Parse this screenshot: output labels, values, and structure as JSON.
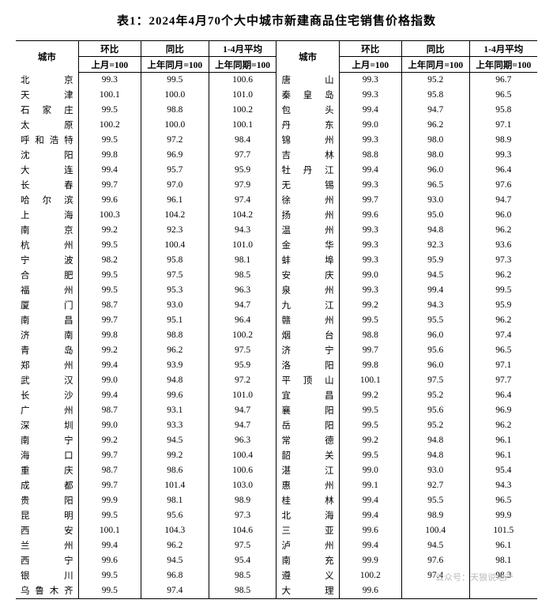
{
  "title": "表1：2024年4月70个大中城市新建商品住宅销售价格指数",
  "headers": {
    "city": "城市",
    "mom": "环比",
    "yoy": "同比",
    "avg": "1-4月平均",
    "mom_sub": "上月=100",
    "yoy_sub": "上年同月=100",
    "avg_sub": "上年同期=100"
  },
  "watermark": "公众号：天狼说地产",
  "left": [
    {
      "city": "北　　京",
      "mom": "99.3",
      "yoy": "99.5",
      "avg": "100.6"
    },
    {
      "city": "天　　津",
      "mom": "100.1",
      "yoy": "100.0",
      "avg": "101.0"
    },
    {
      "city": "石 家 庄",
      "mom": "99.5",
      "yoy": "98.8",
      "avg": "100.2"
    },
    {
      "city": "太　　原",
      "mom": "100.2",
      "yoy": "100.0",
      "avg": "100.1"
    },
    {
      "city": "呼和浩特",
      "mom": "99.5",
      "yoy": "97.2",
      "avg": "98.4"
    },
    {
      "city": "沈　　阳",
      "mom": "99.8",
      "yoy": "96.9",
      "avg": "97.7"
    },
    {
      "city": "大　　连",
      "mom": "99.4",
      "yoy": "95.7",
      "avg": "95.9"
    },
    {
      "city": "长　　春",
      "mom": "99.7",
      "yoy": "97.0",
      "avg": "97.9"
    },
    {
      "city": "哈 尔 滨",
      "mom": "99.6",
      "yoy": "96.1",
      "avg": "97.4"
    },
    {
      "city": "上　　海",
      "mom": "100.3",
      "yoy": "104.2",
      "avg": "104.2"
    },
    {
      "city": "南　　京",
      "mom": "99.2",
      "yoy": "92.3",
      "avg": "94.3"
    },
    {
      "city": "杭　　州",
      "mom": "99.5",
      "yoy": "100.4",
      "avg": "101.0"
    },
    {
      "city": "宁　　波",
      "mom": "98.2",
      "yoy": "95.8",
      "avg": "98.1"
    },
    {
      "city": "合　　肥",
      "mom": "99.5",
      "yoy": "97.5",
      "avg": "98.5"
    },
    {
      "city": "福　　州",
      "mom": "99.5",
      "yoy": "95.3",
      "avg": "96.3"
    },
    {
      "city": "厦　　门",
      "mom": "98.7",
      "yoy": "93.0",
      "avg": "94.7"
    },
    {
      "city": "南　　昌",
      "mom": "99.7",
      "yoy": "95.1",
      "avg": "96.4"
    },
    {
      "city": "济　　南",
      "mom": "99.8",
      "yoy": "98.8",
      "avg": "100.2"
    },
    {
      "city": "青　　岛",
      "mom": "99.2",
      "yoy": "96.2",
      "avg": "97.5"
    },
    {
      "city": "郑　　州",
      "mom": "99.4",
      "yoy": "93.9",
      "avg": "95.9"
    },
    {
      "city": "武　　汉",
      "mom": "99.0",
      "yoy": "94.8",
      "avg": "97.2"
    },
    {
      "city": "长　　沙",
      "mom": "99.4",
      "yoy": "99.6",
      "avg": "101.0"
    },
    {
      "city": "广　　州",
      "mom": "98.7",
      "yoy": "93.1",
      "avg": "94.7"
    },
    {
      "city": "深　　圳",
      "mom": "99.0",
      "yoy": "93.3",
      "avg": "94.7"
    },
    {
      "city": "南　　宁",
      "mom": "99.2",
      "yoy": "94.5",
      "avg": "96.3"
    },
    {
      "city": "海　　口",
      "mom": "99.7",
      "yoy": "99.2",
      "avg": "100.4"
    },
    {
      "city": "重　　庆",
      "mom": "98.7",
      "yoy": "98.6",
      "avg": "100.6"
    },
    {
      "city": "成　　都",
      "mom": "99.7",
      "yoy": "101.4",
      "avg": "103.0"
    },
    {
      "city": "贵　　阳",
      "mom": "99.9",
      "yoy": "98.1",
      "avg": "98.9"
    },
    {
      "city": "昆　　明",
      "mom": "99.5",
      "yoy": "95.6",
      "avg": "97.3"
    },
    {
      "city": "西　　安",
      "mom": "100.1",
      "yoy": "104.3",
      "avg": "104.6"
    },
    {
      "city": "兰　　州",
      "mom": "99.4",
      "yoy": "96.2",
      "avg": "97.5"
    },
    {
      "city": "西　　宁",
      "mom": "99.6",
      "yoy": "94.5",
      "avg": "95.4"
    },
    {
      "city": "银　　川",
      "mom": "99.5",
      "yoy": "96.8",
      "avg": "98.5"
    },
    {
      "city": "乌鲁木齐",
      "mom": "99.5",
      "yoy": "97.4",
      "avg": "98.5"
    }
  ],
  "right": [
    {
      "city": "唐　　山",
      "mom": "99.3",
      "yoy": "95.2",
      "avg": "96.7"
    },
    {
      "city": "秦 皇 岛",
      "mom": "99.3",
      "yoy": "95.8",
      "avg": "96.5"
    },
    {
      "city": "包　　头",
      "mom": "99.4",
      "yoy": "94.7",
      "avg": "95.8"
    },
    {
      "city": "丹　　东",
      "mom": "99.0",
      "yoy": "96.2",
      "avg": "97.1"
    },
    {
      "city": "锦　　州",
      "mom": "99.3",
      "yoy": "98.0",
      "avg": "98.9"
    },
    {
      "city": "吉　　林",
      "mom": "98.8",
      "yoy": "98.0",
      "avg": "99.3"
    },
    {
      "city": "牡 丹 江",
      "mom": "99.4",
      "yoy": "96.0",
      "avg": "96.4"
    },
    {
      "city": "无　　锡",
      "mom": "99.3",
      "yoy": "96.5",
      "avg": "97.6"
    },
    {
      "city": "徐　　州",
      "mom": "99.7",
      "yoy": "93.0",
      "avg": "94.7"
    },
    {
      "city": "扬　　州",
      "mom": "99.6",
      "yoy": "95.0",
      "avg": "96.0"
    },
    {
      "city": "温　　州",
      "mom": "99.3",
      "yoy": "94.8",
      "avg": "96.2"
    },
    {
      "city": "金　　华",
      "mom": "99.3",
      "yoy": "92.3",
      "avg": "93.6"
    },
    {
      "city": "蚌　　埠",
      "mom": "99.3",
      "yoy": "95.9",
      "avg": "97.3"
    },
    {
      "city": "安　　庆",
      "mom": "99.0",
      "yoy": "94.5",
      "avg": "96.2"
    },
    {
      "city": "泉　　州",
      "mom": "99.3",
      "yoy": "99.4",
      "avg": "99.5"
    },
    {
      "city": "九　　江",
      "mom": "99.2",
      "yoy": "94.3",
      "avg": "95.9"
    },
    {
      "city": "赣　　州",
      "mom": "99.5",
      "yoy": "95.5",
      "avg": "96.2"
    },
    {
      "city": "烟　　台",
      "mom": "98.8",
      "yoy": "96.0",
      "avg": "97.4"
    },
    {
      "city": "济　　宁",
      "mom": "99.7",
      "yoy": "95.6",
      "avg": "96.5"
    },
    {
      "city": "洛　　阳",
      "mom": "99.8",
      "yoy": "96.0",
      "avg": "97.1"
    },
    {
      "city": "平 顶 山",
      "mom": "100.1",
      "yoy": "97.5",
      "avg": "97.7"
    },
    {
      "city": "宜　　昌",
      "mom": "99.2",
      "yoy": "95.2",
      "avg": "96.4"
    },
    {
      "city": "襄　　阳",
      "mom": "99.5",
      "yoy": "95.6",
      "avg": "96.9"
    },
    {
      "city": "岳　　阳",
      "mom": "99.5",
      "yoy": "95.2",
      "avg": "96.2"
    },
    {
      "city": "常　　德",
      "mom": "99.2",
      "yoy": "94.8",
      "avg": "96.1"
    },
    {
      "city": "韶　　关",
      "mom": "99.5",
      "yoy": "94.8",
      "avg": "96.1"
    },
    {
      "city": "湛　　江",
      "mom": "99.0",
      "yoy": "93.0",
      "avg": "95.4"
    },
    {
      "city": "惠　　州",
      "mom": "99.1",
      "yoy": "92.7",
      "avg": "94.3"
    },
    {
      "city": "桂　　林",
      "mom": "99.4",
      "yoy": "95.5",
      "avg": "96.5"
    },
    {
      "city": "北　　海",
      "mom": "99.4",
      "yoy": "98.9",
      "avg": "99.9"
    },
    {
      "city": "三　　亚",
      "mom": "99.6",
      "yoy": "100.4",
      "avg": "101.5"
    },
    {
      "city": "泸　　州",
      "mom": "99.4",
      "yoy": "94.5",
      "avg": "96.1"
    },
    {
      "city": "南　　充",
      "mom": "99.9",
      "yoy": "97.6",
      "avg": "98.1"
    },
    {
      "city": "遵　　义",
      "mom": "100.2",
      "yoy": "97.4",
      "avg": "98.3"
    },
    {
      "city": "大　　理",
      "mom": "99.6",
      "yoy": "",
      "avg": ""
    }
  ]
}
